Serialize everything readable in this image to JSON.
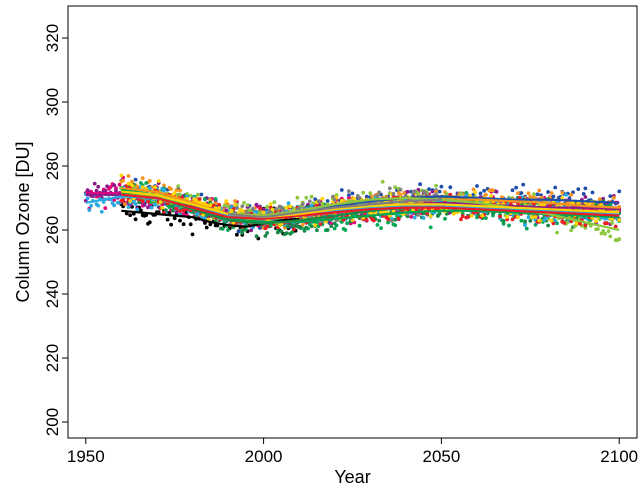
{
  "chart_data": {
    "type": "scatter",
    "title": "",
    "xlabel": "Year",
    "ylabel": "Column Ozone [DU]",
    "xlim": [
      1945,
      2105
    ],
    "ylim": [
      195,
      330
    ],
    "xticks": [
      1950,
      2000,
      2050,
      2100
    ],
    "yticks": [
      200,
      220,
      240,
      260,
      280,
      300,
      320
    ],
    "grid": false,
    "legend": "none",
    "series": [
      {
        "color": "#000000",
        "x": [
          1960,
          1965,
          1970,
          1975,
          1980,
          1985,
          1990,
          1995,
          2000,
          2005,
          2010
        ],
        "y": [
          266.0,
          265.5,
          265.0,
          264.5,
          264.0,
          262.5,
          261.5,
          261.0,
          262.0,
          263.0,
          263.5
        ]
      },
      {
        "color": "#1f4fa8",
        "x": [
          1960,
          1970,
          1980,
          1990,
          2000,
          2010,
          2020,
          2030,
          2040,
          2050,
          2060,
          2070,
          2080,
          2090,
          2100
        ],
        "y": [
          272.0,
          271.0,
          268.0,
          264.5,
          264.0,
          265.5,
          267.5,
          269.0,
          270.0,
          270.5,
          270.0,
          269.5,
          269.5,
          269.0,
          268.5
        ]
      },
      {
        "color": "#e4007c",
        "x": [
          1950,
          1960,
          1970,
          1980,
          1990,
          2000,
          2010,
          2020,
          2030,
          2040,
          2050,
          2060,
          2070,
          2080,
          2090,
          2100
        ],
        "y": [
          271.5,
          271.5,
          270.0,
          267.0,
          264.5,
          264.0,
          264.5,
          265.5,
          266.5,
          267.5,
          268.0,
          267.5,
          267.0,
          266.5,
          266.0,
          265.5
        ]
      },
      {
        "color": "#8b1a8b",
        "x": [
          1950,
          1960,
          1970,
          1980,
          1990,
          2000,
          2010,
          2020,
          2030,
          2040,
          2050,
          2060,
          2070,
          2080,
          2090,
          2100
        ],
        "y": [
          271.0,
          271.0,
          270.0,
          267.5,
          265.0,
          264.0,
          264.5,
          266.0,
          267.0,
          268.0,
          268.5,
          268.0,
          267.5,
          267.0,
          267.0,
          266.5
        ]
      },
      {
        "color": "#f7941d",
        "x": [
          1960,
          1970,
          1980,
          1990,
          2000,
          2010,
          2020,
          2030,
          2040,
          2050,
          2060,
          2070,
          2080,
          2090,
          2100
        ],
        "y": [
          273.0,
          272.0,
          268.5,
          265.0,
          264.0,
          265.0,
          266.5,
          268.0,
          269.0,
          269.5,
          269.5,
          269.0,
          268.5,
          267.5,
          267.0
        ]
      },
      {
        "color": "#00a651",
        "x": [
          1960,
          1970,
          1980,
          1990,
          2000,
          2010,
          2020,
          2030,
          2040,
          2050,
          2060,
          2070,
          2080,
          2090,
          2100
        ],
        "y": [
          272.5,
          271.0,
          267.0,
          263.5,
          262.5,
          262.5,
          263.5,
          264.5,
          265.5,
          266.0,
          266.0,
          265.5,
          265.0,
          264.5,
          264.0
        ]
      },
      {
        "color": "#1a8a4a",
        "x": [
          1960,
          1970,
          1980,
          1990,
          2000,
          2010,
          2020,
          2030,
          2040,
          2050,
          2060,
          2070,
          2080,
          2090,
          2100
        ],
        "y": [
          271.5,
          270.0,
          266.5,
          263.0,
          262.0,
          263.0,
          264.5,
          266.0,
          267.0,
          267.5,
          267.0,
          266.5,
          266.0,
          265.5,
          265.0
        ]
      },
      {
        "color": "#8dc63f",
        "x": [
          1960,
          1970,
          1980,
          1990,
          2000,
          2010,
          2020,
          2030,
          2040,
          2050,
          2060,
          2070,
          2080,
          2090,
          2100
        ],
        "y": [
          271.0,
          270.5,
          268.0,
          265.0,
          264.5,
          266.0,
          268.0,
          269.5,
          270.0,
          269.5,
          268.5,
          267.0,
          265.0,
          262.5,
          260.0
        ]
      },
      {
        "color": "#27aae1",
        "x": [
          1950,
          1960,
          1970,
          1980,
          1990,
          2000,
          2010,
          2020,
          2030,
          2040,
          2050,
          2060,
          2070,
          2080,
          2090,
          2100
        ],
        "y": [
          268.5,
          270.5,
          270.0,
          267.0,
          264.5,
          263.5,
          264.5,
          266.0,
          267.0,
          267.5,
          267.5,
          267.0,
          266.5,
          266.0,
          265.5,
          265.0
        ]
      },
      {
        "color": "#ed1c24",
        "x": [
          1960,
          1970,
          1980,
          1990,
          2000,
          2010,
          2020,
          2030,
          2040,
          2050,
          2060,
          2070,
          2080,
          2090,
          2100
        ],
        "y": [
          271.0,
          270.0,
          267.0,
          264.0,
          263.5,
          264.5,
          265.5,
          266.5,
          267.0,
          267.0,
          266.5,
          266.0,
          265.5,
          265.0,
          264.5
        ]
      },
      {
        "color": "#ffd400",
        "x": [
          1960,
          1970,
          1980,
          1990,
          2000,
          2010,
          2020,
          2030,
          2040,
          2050,
          2060,
          2070,
          2080,
          2090,
          2100
        ],
        "y": [
          272.0,
          271.0,
          268.0,
          265.0,
          264.0,
          265.0,
          266.5,
          267.5,
          268.0,
          268.0,
          267.5,
          267.0,
          266.5,
          266.0,
          265.5
        ]
      },
      {
        "color": "#808080",
        "x": [
          1990,
          2000,
          2010,
          2020,
          2030,
          2040,
          2050
        ],
        "y": [
          265.0,
          264.0,
          265.5,
          267.0,
          268.0,
          269.0,
          269.5
        ]
      }
    ]
  }
}
